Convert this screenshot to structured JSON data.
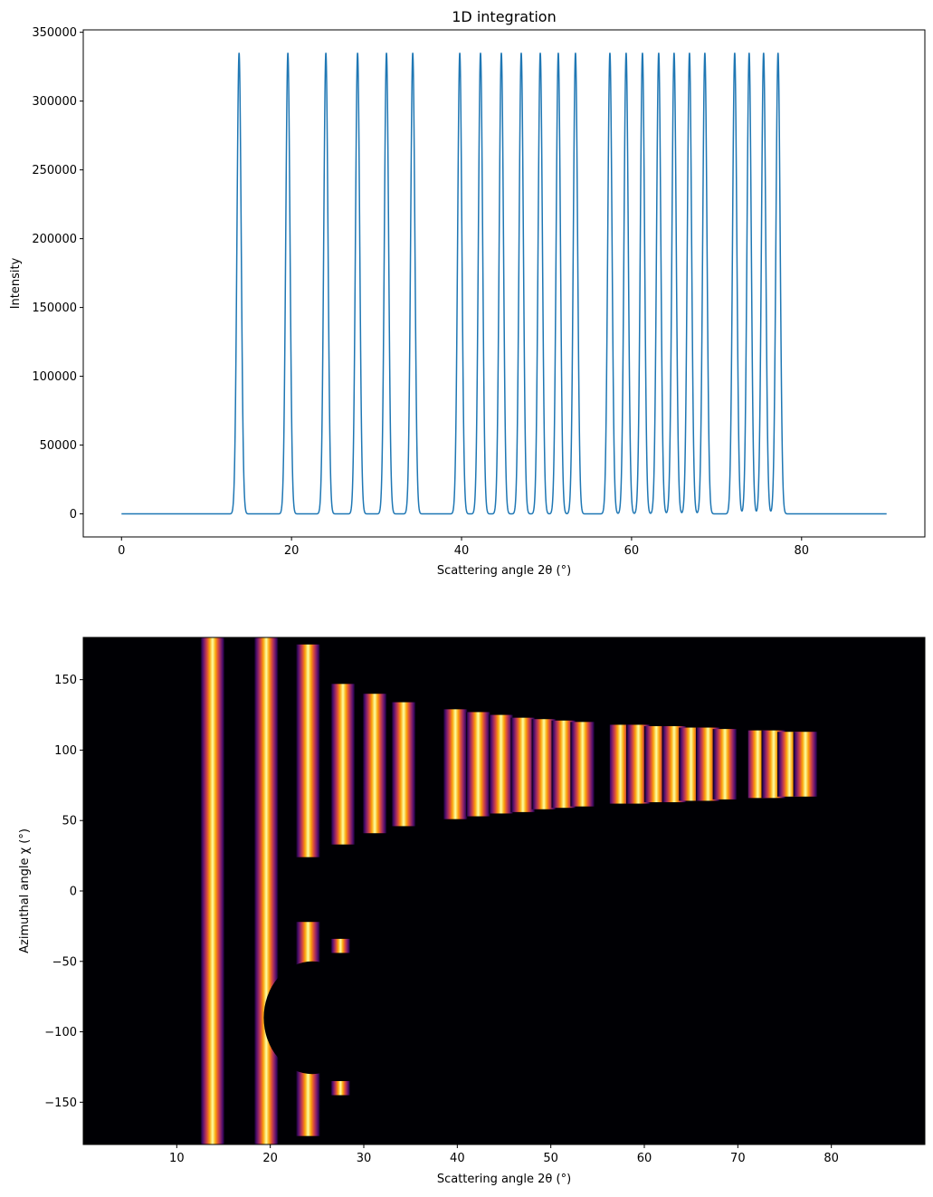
{
  "chart_data": [
    {
      "type": "line",
      "title": "1D integration",
      "xlabel": "Scattering angle 2θ (°)",
      "ylabel": "Intensity",
      "xlim": [
        -4.5,
        94.5
      ],
      "ylim": [
        -16750,
        351750
      ],
      "x_range": [
        0,
        90
      ],
      "xticks": [
        0,
        20,
        40,
        60,
        80
      ],
      "yticks": [
        0,
        50000,
        100000,
        150000,
        200000,
        250000,
        300000,
        350000
      ],
      "grid": false,
      "line_color": "#1f77b4",
      "peak_height": 335000,
      "peak_sigma_deg": 0.25,
      "peaks_2theta": [
        13.83,
        19.57,
        24.04,
        27.77,
        31.17,
        34.26,
        39.79,
        42.23,
        44.68,
        47.02,
        49.26,
        51.38,
        53.4,
        57.45,
        59.36,
        61.28,
        63.19,
        65.0,
        66.81,
        68.62,
        72.13,
        73.83,
        75.53,
        77.23
      ]
    },
    {
      "type": "heatmap",
      "xlabel": "Scattering angle 2θ (°)",
      "ylabel": "Azimuthal angle χ (°)",
      "xlim": [
        0,
        90
      ],
      "ylim": [
        -180,
        180
      ],
      "xticks": [
        10,
        20,
        30,
        40,
        50,
        60,
        70,
        80
      ],
      "yticks": [
        -150,
        -100,
        -50,
        0,
        50,
        100,
        150
      ],
      "colormap": "inferno",
      "background": "#000004",
      "detector_modules_2theta": [
        [
          38.5,
          54.8
        ],
        [
          56.3,
          70.1
        ],
        [
          71.1,
          78.8
        ]
      ],
      "rings": [
        {
          "two_theta": 13.83,
          "chi_segments": [
            [
              -180,
              180
            ]
          ]
        },
        {
          "two_theta": 19.57,
          "chi_segments": [
            [
              -180,
              180
            ]
          ]
        },
        {
          "two_theta": 24.04,
          "chi_segments": [
            [
              24,
              175
            ],
            [
              -57,
              -22
            ],
            [
              -174,
              -123
            ]
          ]
        },
        {
          "two_theta": 27.77,
          "chi_segments": [
            [
              33,
              147
            ],
            [
              -44,
              -34
            ],
            [
              -145,
              -135
            ]
          ]
        },
        {
          "two_theta": 31.17,
          "chi_segments": [
            [
              41,
              140
            ]
          ]
        },
        {
          "two_theta": 34.26,
          "chi_segments": [
            [
              46,
              134
            ]
          ]
        },
        {
          "two_theta": 39.79,
          "chi_segments": [
            [
              51,
              129
            ]
          ]
        },
        {
          "two_theta": 42.23,
          "chi_segments": [
            [
              53,
              127
            ]
          ]
        },
        {
          "two_theta": 44.68,
          "chi_segments": [
            [
              55,
              125
            ]
          ]
        },
        {
          "two_theta": 47.02,
          "chi_segments": [
            [
              56,
              123
            ]
          ]
        },
        {
          "two_theta": 49.26,
          "chi_segments": [
            [
              58,
              122
            ]
          ]
        },
        {
          "two_theta": 51.38,
          "chi_segments": [
            [
              59,
              121
            ]
          ]
        },
        {
          "two_theta": 53.4,
          "chi_segments": [
            [
              60,
              120
            ]
          ]
        },
        {
          "two_theta": 57.45,
          "chi_segments": [
            [
              62,
              118
            ]
          ]
        },
        {
          "two_theta": 59.36,
          "chi_segments": [
            [
              62,
              118
            ]
          ]
        },
        {
          "two_theta": 61.28,
          "chi_segments": [
            [
              63,
              117
            ]
          ]
        },
        {
          "two_theta": 63.19,
          "chi_segments": [
            [
              63,
              117
            ]
          ]
        },
        {
          "two_theta": 65.0,
          "chi_segments": [
            [
              64,
              116
            ]
          ]
        },
        {
          "two_theta": 66.81,
          "chi_segments": [
            [
              64,
              116
            ]
          ]
        },
        {
          "two_theta": 68.62,
          "chi_segments": [
            [
              65,
              115
            ]
          ]
        },
        {
          "two_theta": 72.13,
          "chi_segments": [
            [
              66,
              114
            ]
          ]
        },
        {
          "two_theta": 73.83,
          "chi_segments": [
            [
              66,
              114
            ]
          ]
        },
        {
          "two_theta": 75.53,
          "chi_segments": [
            [
              67,
              113
            ]
          ]
        },
        {
          "two_theta": 77.23,
          "chi_segments": [
            [
              67,
              113
            ]
          ]
        }
      ]
    }
  ]
}
